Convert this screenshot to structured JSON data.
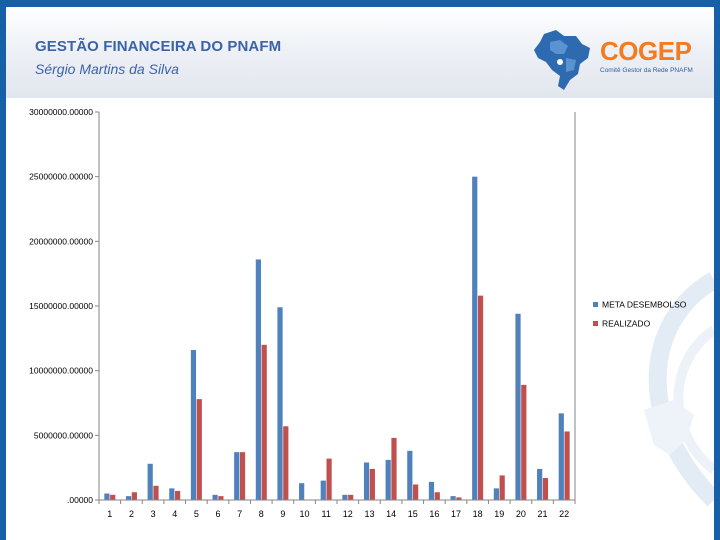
{
  "header": {
    "title": "GESTÃO FINANCEIRA DO PNAFM",
    "subtitle": "Sérgio Martins da Silva"
  },
  "logo": {
    "name": "COGEP",
    "tagline": "Comitê Gestor da Rede PNAFM"
  },
  "colors": {
    "meta": "#4f81bd",
    "realizado": "#c0504d",
    "axis": "#868686"
  },
  "chart_data": {
    "type": "bar",
    "categories": [
      "1",
      "2",
      "3",
      "4",
      "5",
      "6",
      "7",
      "8",
      "9",
      "10",
      "11",
      "12",
      "13",
      "14",
      "15",
      "16",
      "17",
      "18",
      "19",
      "20",
      "21",
      "22"
    ],
    "y_tick_labels": [
      ".00000",
      "5000000.00000",
      "10000000.00000",
      "15000000.00000",
      "20000000.00000",
      "25000000.00000",
      "30000000.00000"
    ],
    "ylim": [
      0,
      30000000
    ],
    "legend_position": "right",
    "grid": false,
    "series": [
      {
        "name": "META DESEMBOLSO",
        "values": [
          500000,
          300000,
          2800000,
          900000,
          11600000,
          400000,
          3700000,
          18600000,
          14900000,
          1300000,
          1500000,
          400000,
          2900000,
          3100000,
          3800000,
          1400000,
          300000,
          25000000,
          900000,
          14400000,
          2400000,
          6700000
        ]
      },
      {
        "name": "REALIZADO",
        "values": [
          400000,
          600000,
          1100000,
          700000,
          7800000,
          300000,
          3700000,
          12000000,
          5700000,
          0,
          3200000,
          400000,
          2400000,
          4800000,
          1200000,
          600000,
          200000,
          15800000,
          1900000,
          8900000,
          1700000,
          5300000
        ]
      }
    ]
  }
}
